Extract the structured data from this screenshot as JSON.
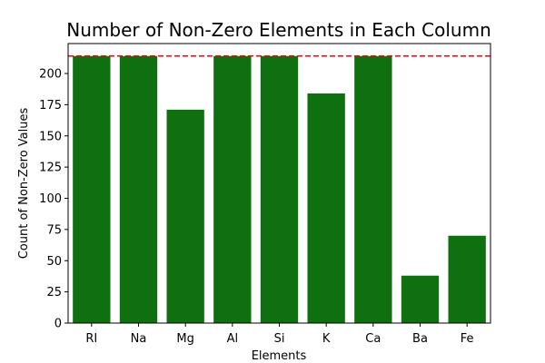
{
  "chart_data": {
    "type": "bar",
    "title": "Number of Non-Zero Elements in Each Column",
    "xlabel": "Elements",
    "ylabel": "Count of Non-Zero Values",
    "categories": [
      "RI",
      "Na",
      "Mg",
      "Al",
      "Si",
      "K",
      "Ca",
      "Ba",
      "Fe"
    ],
    "values": [
      214,
      214,
      171,
      214,
      214,
      184,
      214,
      38,
      70
    ],
    "ylim": [
      0,
      224
    ],
    "yticks": [
      0,
      25,
      50,
      75,
      100,
      125,
      150,
      175,
      200
    ],
    "reference_line": {
      "value": 214,
      "color": "#ff0000",
      "style": "dashed"
    },
    "bar_color": "#0e700e",
    "grid": false,
    "legend": "none"
  }
}
